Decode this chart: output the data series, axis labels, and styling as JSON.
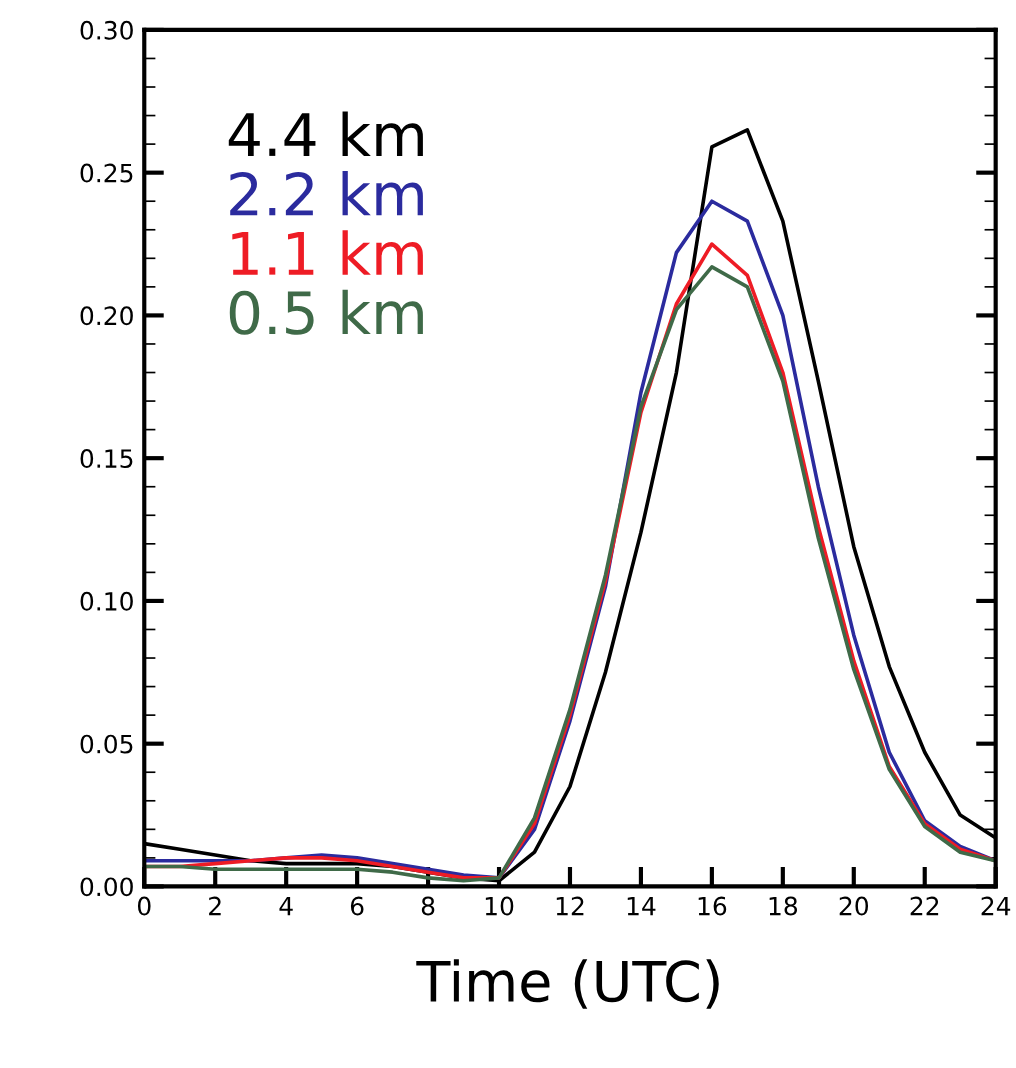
{
  "chart_data": {
    "type": "line",
    "xlabel": "Time (UTC)",
    "x": [
      0,
      1,
      2,
      3,
      4,
      5,
      6,
      7,
      8,
      9,
      10,
      11,
      12,
      13,
      14,
      15,
      16,
      17,
      18,
      19,
      20,
      21,
      22,
      23,
      24
    ],
    "xlim": [
      0,
      24
    ],
    "xticks": [
      0,
      2,
      4,
      6,
      8,
      10,
      12,
      14,
      16,
      18,
      20,
      22,
      24
    ],
    "ylim": [
      0,
      0.3
    ],
    "yticks": [
      {
        "value": 0,
        "label": "0.00"
      },
      {
        "value": 0.05,
        "label": "0.05"
      },
      {
        "value": 0.1,
        "label": "0.10"
      },
      {
        "value": 0.15,
        "label": "0.15"
      },
      {
        "value": 0.2,
        "label": "0.20"
      },
      {
        "value": 0.25,
        "label": "0.25"
      },
      {
        "value": 0.3,
        "label": "0.30"
      }
    ],
    "grid": false,
    "legend": "top left",
    "marker": "none",
    "line_style": "solid",
    "series": [
      {
        "name": "4.4 km",
        "color": "#000000",
        "values": [
          0.015,
          0.013,
          0.011,
          0.009,
          0.008,
          0.008,
          0.008,
          0.007,
          0.005,
          0.003,
          0.002,
          0.012,
          0.035,
          0.075,
          0.124,
          0.18,
          0.259,
          0.265,
          0.233,
          0.177,
          0.119,
          0.077,
          0.047,
          0.025,
          0.017
        ]
      },
      {
        "name": "2.2 km",
        "color": "#2b2b9e",
        "values": [
          0.009,
          0.009,
          0.009,
          0.009,
          0.01,
          0.011,
          0.01,
          0.008,
          0.006,
          0.004,
          0.003,
          0.02,
          0.058,
          0.105,
          0.173,
          0.222,
          0.24,
          0.233,
          0.2,
          0.14,
          0.088,
          0.047,
          0.023,
          0.014,
          0.009
        ]
      },
      {
        "name": "1.1 km",
        "color": "#ee1c25",
        "values": [
          0.007,
          0.007,
          0.008,
          0.009,
          0.01,
          0.01,
          0.009,
          0.007,
          0.005,
          0.003,
          0.003,
          0.022,
          0.06,
          0.107,
          0.166,
          0.204,
          0.225,
          0.214,
          0.18,
          0.126,
          0.079,
          0.042,
          0.022,
          0.013,
          0.009
        ]
      },
      {
        "name": "0.5 km",
        "color": "#3f6a48",
        "values": [
          0.007,
          0.007,
          0.006,
          0.006,
          0.006,
          0.006,
          0.006,
          0.005,
          0.003,
          0.002,
          0.003,
          0.024,
          0.062,
          0.109,
          0.168,
          0.202,
          0.217,
          0.21,
          0.177,
          0.122,
          0.076,
          0.041,
          0.021,
          0.012,
          0.009
        ]
      }
    ]
  }
}
